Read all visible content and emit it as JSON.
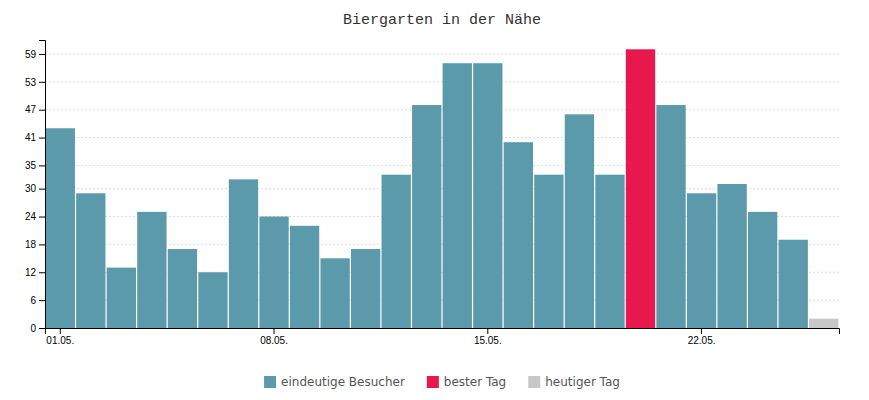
{
  "chart_data": {
    "type": "bar",
    "title": "Biergarten in der Nähe",
    "categories": [
      "01.05.",
      null,
      null,
      null,
      null,
      null,
      null,
      "08.05.",
      null,
      null,
      null,
      null,
      null,
      null,
      "15.05.",
      null,
      null,
      null,
      null,
      null,
      null,
      "22.05.",
      null,
      null,
      null,
      null
    ],
    "series": [
      {
        "name": "eindeutige Besucher",
        "color": "#5b9aaa",
        "values": [
          43,
          29,
          13,
          25,
          17,
          12,
          32,
          24,
          22,
          15,
          17,
          33,
          48,
          57,
          57,
          40,
          33,
          46,
          33,
          null,
          48,
          29,
          31,
          25,
          19,
          null
        ]
      },
      {
        "name": "bester Tag",
        "color": "#e8184e",
        "values": [
          null,
          null,
          null,
          null,
          null,
          null,
          null,
          null,
          null,
          null,
          null,
          null,
          null,
          null,
          null,
          null,
          null,
          null,
          null,
          60,
          null,
          null,
          null,
          null,
          null,
          null
        ]
      },
      {
        "name": "heutiger Tag",
        "color": "#c8c8c8",
        "values": [
          null,
          null,
          null,
          null,
          null,
          null,
          null,
          null,
          null,
          null,
          null,
          null,
          null,
          null,
          null,
          null,
          null,
          null,
          null,
          null,
          null,
          null,
          null,
          null,
          null,
          2
        ]
      }
    ],
    "stacked": true,
    "ylim": [
      0,
      62
    ],
    "yticks": [
      0,
      6,
      12,
      18,
      24,
      30,
      35,
      41,
      47,
      53,
      59
    ],
    "grid": true,
    "legend": "bottom"
  }
}
